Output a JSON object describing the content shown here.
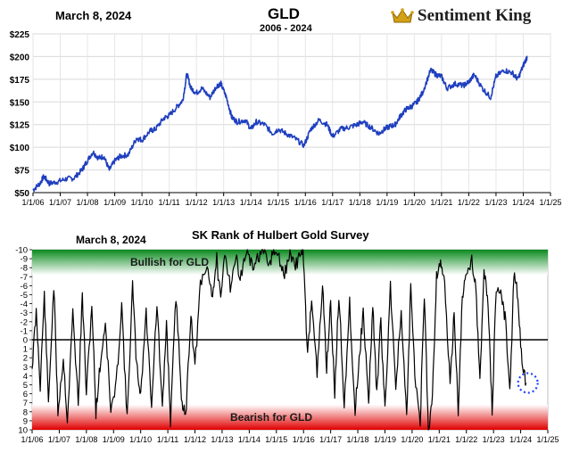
{
  "header": {
    "date": "March 8, 2024",
    "title": "GLD",
    "subtitle": "2006 - 2024",
    "brand": "Sentiment King"
  },
  "chart_data": [
    {
      "type": "line",
      "title": "GLD",
      "subtitle": "2006 - 2024",
      "x_tick_labels": [
        "1/1/06",
        "1/1/07",
        "1/1/08",
        "1/1/09",
        "1/1/10",
        "1/1/11",
        "1/1/12",
        "1/1/13",
        "1/1/14",
        "1/1/15",
        "1/1/16",
        "1/1/17",
        "1/1/18",
        "1/1/19",
        "1/1/20",
        "1/1/21",
        "1/1/22",
        "1/1/23",
        "1/1/24",
        "1/1/25"
      ],
      "y_tick_labels": [
        "$50",
        "$75",
        "$100",
        "$125",
        "$150",
        "$175",
        "$200",
        "$225"
      ],
      "ylim": [
        50,
        225
      ],
      "xlim": [
        2006.0,
        2025.0
      ],
      "grid": true,
      "series": [
        {
          "color": "#1f3fbf",
          "x": [
            2006.0,
            2006.25,
            2006.4,
            2006.6,
            2006.9,
            2007.2,
            2007.5,
            2007.8,
            2007.95,
            2008.2,
            2008.4,
            2008.6,
            2008.8,
            2009.0,
            2009.2,
            2009.5,
            2009.8,
            2010.0,
            2010.3,
            2010.5,
            2010.8,
            2011.0,
            2011.3,
            2011.5,
            2011.65,
            2011.8,
            2012.0,
            2012.2,
            2012.5,
            2012.75,
            2012.9,
            2013.1,
            2013.3,
            2013.5,
            2013.8,
            2014.0,
            2014.2,
            2014.5,
            2014.8,
            2015.0,
            2015.3,
            2015.6,
            2015.95,
            2016.2,
            2016.5,
            2016.8,
            2017.0,
            2017.3,
            2017.6,
            2017.9,
            2018.1,
            2018.4,
            2018.7,
            2018.9,
            2019.1,
            2019.3,
            2019.5,
            2019.7,
            2019.9,
            2020.1,
            2020.3,
            2020.6,
            2020.8,
            2021.0,
            2021.2,
            2021.5,
            2021.8,
            2022.0,
            2022.2,
            2022.5,
            2022.8,
            2023.0,
            2023.3,
            2023.6,
            2023.8,
            2024.0,
            2024.15
          ],
          "values": [
            53,
            60,
            68,
            60,
            62,
            65,
            66,
            75,
            83,
            95,
            88,
            90,
            75,
            85,
            90,
            92,
            110,
            108,
            118,
            120,
            132,
            135,
            145,
            152,
            181,
            165,
            160,
            165,
            155,
            168,
            170,
            155,
            133,
            128,
            130,
            120,
            128,
            125,
            115,
            120,
            115,
            110,
            102,
            120,
            130,
            125,
            112,
            120,
            122,
            125,
            128,
            122,
            115,
            120,
            123,
            125,
            135,
            142,
            145,
            150,
            160,
            185,
            180,
            178,
            165,
            170,
            168,
            172,
            180,
            165,
            155,
            178,
            185,
            182,
            175,
            190,
            200
          ]
        }
      ]
    },
    {
      "type": "line",
      "title": "SK Rank of Hulbert Gold Survey",
      "date_label": "March 8, 2024",
      "x_tick_labels": [
        "1/1/06",
        "1/1/07",
        "1/1/08",
        "1/1/09",
        "1/1/10",
        "1/1/11",
        "1/1/12",
        "1/1/13",
        "1/1/14",
        "1/1/15",
        "1/1/16",
        "1/1/17",
        "1/1/18",
        "1/1/19",
        "1/1/20",
        "1/1/21",
        "1/1/22",
        "1/1/23",
        "1/1/24",
        "1/1/25"
      ],
      "y_tick_labels": [
        "-10",
        "-9",
        "-8",
        "-7",
        "-6",
        "-5",
        "-4",
        "-3",
        "-2",
        "-1",
        "0",
        "1",
        "2",
        "3",
        "4",
        "5",
        "6",
        "7",
        "8",
        "9",
        "10"
      ],
      "ylim": [
        -10,
        10
      ],
      "y_inverted": true,
      "xlim": [
        2006.0,
        2025.0
      ],
      "annotations": [
        "Bullish for GLD",
        "Bearish for GLD"
      ],
      "zero_line": 0,
      "highlight": {
        "x": 2024.2,
        "y": 4.8,
        "color": "#1f3fff",
        "style": "dotted-circle"
      },
      "colors": {
        "bullish_band": "#0a8a1e",
        "bearish_band": "#e00000",
        "line": "#000000"
      },
      "series": [
        {
          "color": "#000000",
          "x": [
            2006.0,
            2006.15,
            2006.3,
            2006.45,
            2006.6,
            2006.8,
            2006.95,
            2007.15,
            2007.3,
            2007.5,
            2007.7,
            2007.85,
            2008.0,
            2008.2,
            2008.35,
            2008.5,
            2008.7,
            2008.9,
            2009.1,
            2009.3,
            2009.5,
            2009.7,
            2009.85,
            2010.0,
            2010.2,
            2010.4,
            2010.6,
            2010.8,
            2010.95,
            2011.1,
            2011.3,
            2011.5,
            2011.65,
            2011.85,
            2012.0,
            2012.2,
            2012.45,
            2012.65,
            2012.8,
            2012.95,
            2013.1,
            2013.3,
            2013.5,
            2013.7,
            2013.9,
            2014.1,
            2014.3,
            2014.5,
            2014.7,
            2014.9,
            2015.1,
            2015.3,
            2015.5,
            2015.7,
            2015.9,
            2016.0,
            2016.15,
            2016.3,
            2016.5,
            2016.7,
            2016.85,
            2017.0,
            2017.15,
            2017.3,
            2017.5,
            2017.7,
            2017.9,
            2018.05,
            2018.2,
            2018.4,
            2018.55,
            2018.7,
            2018.85,
            2019.0,
            2019.2,
            2019.4,
            2019.6,
            2019.8,
            2019.95,
            2020.1,
            2020.3,
            2020.45,
            2020.6,
            2020.75,
            2020.9,
            2021.05,
            2021.2,
            2021.4,
            2021.55,
            2021.7,
            2021.85,
            2022.0,
            2022.2,
            2022.35,
            2022.5,
            2022.65,
            2022.8,
            2022.95,
            2023.1,
            2023.3,
            2023.45,
            2023.6,
            2023.75,
            2023.9,
            2024.05,
            2024.2
          ],
          "values": [
            3,
            -3,
            5,
            -5,
            7,
            -6,
            8,
            2,
            9,
            -3,
            7,
            -5,
            6,
            -4,
            8,
            3,
            -2,
            8,
            5,
            -4,
            9,
            -6,
            3,
            6,
            -3,
            7,
            -4,
            8,
            -2,
            9,
            -5,
            6,
            9,
            -3,
            3,
            -6,
            -8,
            -5,
            -9,
            -4,
            -10,
            -6,
            -9,
            -7,
            -10,
            -8,
            -9,
            -10,
            -8,
            -10,
            -9,
            -7,
            -10,
            -8,
            -10,
            -9,
            2,
            -5,
            4,
            -6,
            3,
            -4,
            6,
            -5,
            7,
            -4,
            8,
            2,
            -3,
            7,
            -4,
            6,
            -2,
            8,
            -6,
            5,
            -3,
            9,
            -6,
            4,
            9,
            -5,
            10,
            6,
            -7,
            -9,
            -6,
            5,
            -3,
            8,
            -5,
            -7,
            -9,
            -6,
            5,
            -8,
            -4,
            8,
            -6,
            -5,
            -2,
            6,
            -7,
            -5,
            3,
            4.8
          ]
        }
      ]
    }
  ]
}
